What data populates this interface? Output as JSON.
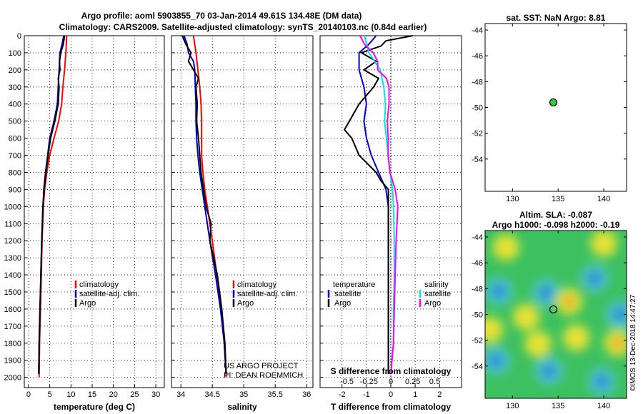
{
  "header": {
    "line1": "Argo profile: aoml 5903855_70 03-Jan-2014 49.61S 134.48E (DM data)",
    "line2": "Climatology: CARS2009. Satellite-adjusted climatology: synTS_20140103.nc (0.84d earlier)"
  },
  "colors": {
    "climatology": "#ff0000",
    "satellite": "#0000cc",
    "argo": "#000000",
    "sal_sat": "#00e5e5",
    "sal_argo": "#ff00ff",
    "marker": "#2ecc40"
  },
  "chart_data": [
    {
      "type": "line",
      "id": "temperature",
      "xlabel": "temperature (deg C)",
      "xlim": [
        -1,
        32
      ],
      "ylim": [
        0,
        2060
      ],
      "xticks": [
        0,
        5,
        10,
        15,
        20,
        25,
        30
      ],
      "yticks": [
        0,
        100,
        200,
        300,
        400,
        500,
        600,
        700,
        800,
        900,
        1000,
        1100,
        1200,
        1300,
        1400,
        1500,
        1600,
        1700,
        1800,
        1900,
        2000
      ],
      "legend": [
        "climatology",
        "satellite-adj. clim.",
        "Argo"
      ],
      "series": [
        {
          "name": "climatology",
          "color": "#ff0000",
          "depth": [
            0,
            100,
            200,
            300,
            400,
            500,
            600,
            700,
            800,
            900,
            1000,
            1200,
            1400,
            1600,
            1800,
            2000
          ],
          "values": [
            9.0,
            8.8,
            8.5,
            8.1,
            7.8,
            7.1,
            6.0,
            5.0,
            4.3,
            3.8,
            3.5,
            3.2,
            3.0,
            2.8,
            2.6,
            2.5
          ]
        },
        {
          "name": "satellite-adj. clim.",
          "color": "#0000cc",
          "depth": [
            0,
            50,
            100,
            200,
            300,
            400,
            500,
            600,
            700,
            800,
            900,
            1000,
            1200,
            1400,
            1600,
            1800,
            1980
          ],
          "values": [
            8.3,
            7.9,
            7.4,
            7.2,
            7.0,
            6.8,
            6.0,
            5.0,
            4.5,
            4.0,
            3.6,
            3.4,
            3.1,
            2.9,
            2.7,
            2.5,
            2.4
          ]
        },
        {
          "name": "Argo",
          "color": "#000000",
          "depth": [
            0,
            50,
            100,
            150,
            200,
            250,
            300,
            400,
            500,
            600,
            700,
            800,
            900,
            1000,
            1200,
            1400,
            1600,
            1800,
            1980
          ],
          "values": [
            8.5,
            8.2,
            7.6,
            7.3,
            7.4,
            7.0,
            7.2,
            7.0,
            6.2,
            5.2,
            4.6,
            4.1,
            3.7,
            3.4,
            3.1,
            2.9,
            2.7,
            2.5,
            2.4
          ]
        }
      ]
    },
    {
      "type": "line",
      "id": "salinity",
      "xlabel": "salinity",
      "xlim": [
        33.85,
        36.1
      ],
      "ylim": [
        0,
        2060
      ],
      "xticks": [
        34,
        34.5,
        35,
        35.5,
        36
      ],
      "xtick_labels": [
        "34",
        "34.5",
        "35",
        "35.5",
        "36"
      ],
      "legend": [
        "climatology",
        "satellite-adj. clim.",
        "Argo"
      ],
      "credit": [
        "US ARGO PROJECT",
        "PI: DEAN ROEMMICH"
      ],
      "series": [
        {
          "name": "climatology",
          "color": "#ff0000",
          "depth": [
            0,
            100,
            200,
            300,
            400,
            500,
            600,
            700,
            800,
            900,
            1000,
            1200,
            1400,
            1600,
            1800,
            2000
          ],
          "values": [
            34.2,
            34.24,
            34.27,
            34.3,
            34.32,
            34.33,
            34.33,
            34.33,
            34.35,
            34.38,
            34.42,
            34.5,
            34.57,
            34.64,
            34.69,
            34.72
          ]
        },
        {
          "name": "satellite-adj. clim.",
          "color": "#0000cc",
          "depth": [
            0,
            50,
            100,
            150,
            200,
            300,
            400,
            500,
            600,
            700,
            800,
            900,
            1000,
            1200,
            1400,
            1600,
            1800,
            1980
          ],
          "values": [
            34.05,
            34.1,
            34.12,
            34.2,
            34.22,
            34.23,
            34.24,
            34.24,
            34.25,
            34.27,
            34.3,
            34.34,
            34.38,
            34.46,
            34.55,
            34.63,
            34.69,
            34.72
          ]
        },
        {
          "name": "Argo",
          "color": "#000000",
          "depth": [
            0,
            50,
            100,
            150,
            200,
            250,
            300,
            400,
            500,
            600,
            700,
            800,
            900,
            1000,
            1100,
            1200,
            1400,
            1600,
            1800,
            1980
          ],
          "values": [
            34.02,
            34.08,
            34.16,
            34.12,
            34.2,
            34.28,
            34.24,
            34.26,
            34.25,
            34.28,
            34.3,
            34.32,
            34.36,
            34.4,
            34.48,
            34.46,
            34.58,
            34.65,
            34.7,
            34.72
          ]
        }
      ]
    },
    {
      "type": "line",
      "id": "difference",
      "xlabel": "T difference from climatology",
      "xlim": [
        -2.9,
        2.9
      ],
      "ylim": [
        0,
        2060
      ],
      "xticks": [
        -2,
        -1,
        0,
        1,
        2
      ],
      "top_label": "S difference from climatology",
      "s_ticks": [
        -0.5,
        -0.25,
        0,
        0.25,
        0.5
      ],
      "s_tick_labels": [
        "-0.5",
        "-0.25",
        "0",
        "0.25",
        "0.5"
      ],
      "legend_left_title": "temperature",
      "legend_left": [
        "satellite",
        "Argo"
      ],
      "legend_right_title": "salinity",
      "legend_right": [
        "satellite",
        "Argo"
      ],
      "series": [
        {
          "name": "T satellite",
          "color": "#0000cc",
          "depth": [
            0,
            50,
            100,
            200,
            300,
            400,
            500,
            600,
            700,
            800,
            900,
            1000,
            1200,
            1400,
            1600,
            1800,
            1980
          ],
          "values": [
            -0.6,
            -0.9,
            -1.3,
            -1.3,
            -1.1,
            -1.0,
            -1.1,
            -1.0,
            -0.8,
            -0.5,
            -0.2,
            -0.1,
            -0.1,
            -0.1,
            -0.1,
            -0.1,
            -0.1
          ]
        },
        {
          "name": "T Argo",
          "color": "#000000",
          "depth": [
            0,
            30,
            60,
            100,
            150,
            200,
            250,
            300,
            400,
            500,
            550,
            600,
            700,
            800,
            850,
            900,
            1000,
            1200,
            1400,
            1600,
            1800,
            1980
          ],
          "values": [
            0.9,
            -0.2,
            -0.4,
            -1.2,
            -0.6,
            -1.1,
            -0.5,
            -0.7,
            -1.3,
            -1.7,
            -1.9,
            -1.6,
            -1.3,
            -0.6,
            -0.4,
            -0.1,
            -0.1,
            -0.1,
            -0.1,
            -0.1,
            -0.1,
            -0.1
          ]
        },
        {
          "name": "S satellite",
          "color": "#00e5e5",
          "depth": [
            0,
            100,
            200,
            300,
            400,
            500,
            600,
            700,
            800,
            900,
            1000,
            1200,
            1400,
            1600,
            1800,
            1980
          ],
          "values": [
            -0.3,
            -0.25,
            -0.12,
            -0.08,
            -0.06,
            -0.07,
            -0.05,
            -0.03,
            -0.01,
            0.02,
            0.03,
            0.04,
            0.04,
            0.03,
            0.03,
            0.0
          ]
        },
        {
          "name": "S Argo",
          "color": "#ff00ff",
          "depth": [
            0,
            50,
            100,
            150,
            200,
            250,
            300,
            400,
            500,
            600,
            700,
            800,
            900,
            1000,
            1200,
            1400,
            1600,
            1800,
            1980
          ],
          "values": [
            -0.35,
            -0.3,
            -0.2,
            -0.15,
            -0.15,
            -0.05,
            -0.02,
            -0.02,
            -0.04,
            -0.03,
            -0.03,
            -0.01,
            0.05,
            0.08,
            0.06,
            0.05,
            0.04,
            0.03,
            0.0
          ]
        }
      ]
    },
    {
      "type": "scatter",
      "id": "sst_map",
      "title": "sat. SST: NaN Argo: 8.81",
      "xlim": [
        127,
        142.5
      ],
      "ylim": [
        -56.5,
        -43.5
      ],
      "xticks": [
        130,
        135,
        140
      ],
      "yticks": [
        -44,
        -46,
        -48,
        -50,
        -52,
        -54
      ],
      "points": [
        {
          "lon": 134.48,
          "lat": -49.61
        }
      ]
    },
    {
      "type": "heatmap",
      "id": "sla_map",
      "title1": "Altim. SLA: -0.087",
      "title2": "Argo h1000: -0.098 h2000: -0.19",
      "xlim": [
        127,
        142.5
      ],
      "ylim": [
        -56.5,
        -43.5
      ],
      "xticks": [
        130,
        135,
        140
      ],
      "yticks": [
        -44,
        -46,
        -48,
        -50,
        -52,
        -54
      ],
      "points": [
        {
          "lon": 134.48,
          "lat": -49.61
        }
      ],
      "blobs": [
        {
          "lon": 128.5,
          "lat": -48.2,
          "v": -0.9
        },
        {
          "lon": 133.7,
          "lat": -48.3,
          "v": -0.8
        },
        {
          "lon": 139.0,
          "lat": -47.2,
          "v": -0.6
        },
        {
          "lon": 141.8,
          "lat": -50.0,
          "v": -1.0
        },
        {
          "lon": 129.3,
          "lat": -44.8,
          "v": 0.7
        },
        {
          "lon": 131.5,
          "lat": -50.2,
          "v": 0.7
        },
        {
          "lon": 136.2,
          "lat": -49.0,
          "v": 0.8
        },
        {
          "lon": 137.0,
          "lat": -51.8,
          "v": 0.6
        },
        {
          "lon": 141.5,
          "lat": -52.2,
          "v": 0.9
        },
        {
          "lon": 132.8,
          "lat": -52.3,
          "v": 0.4
        },
        {
          "lon": 128.2,
          "lat": -53.6,
          "v": -0.5
        },
        {
          "lon": 134.0,
          "lat": -54.4,
          "v": -0.5
        },
        {
          "lon": 139.8,
          "lat": -55.2,
          "v": -0.4
        },
        {
          "lon": 127.5,
          "lat": -51.2,
          "v": 0.5
        },
        {
          "lon": 140.0,
          "lat": -44.5,
          "v": 0.3
        }
      ]
    }
  ],
  "footer": {
    "stamp": "©IMOS 13-Dec-2018 14:47:27"
  }
}
